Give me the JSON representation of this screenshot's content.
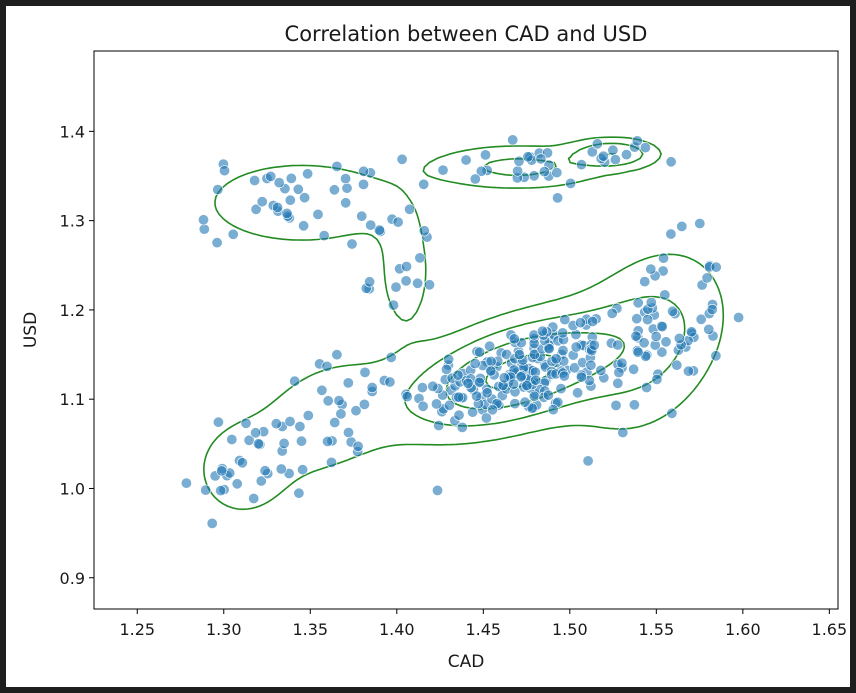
{
  "chart_data": {
    "type": "scatter",
    "title": "Correlation between CAD and USD",
    "xlabel": "CAD",
    "ylabel": "USD",
    "xlim": [
      1.225,
      1.655
    ],
    "ylim": [
      0.865,
      1.49
    ],
    "xticks": [
      "1.25",
      "1.30",
      "1.35",
      "1.40",
      "1.45",
      "1.50",
      "1.55",
      "1.60",
      "1.65"
    ],
    "yticks": [
      "0.9",
      "1.0",
      "1.1",
      "1.2",
      "1.3",
      "1.4"
    ],
    "grid": false,
    "colors": {
      "points": "#1f77b4",
      "contours": "#228b22",
      "axes": "#000000"
    },
    "clusters": [
      {
        "x": 1.47,
        "y": 1.13,
        "sx": 0.03,
        "sy": 0.03,
        "n": 190,
        "rho": 0.5
      },
      {
        "x": 1.545,
        "y": 1.165,
        "sx": 0.022,
        "sy": 0.05,
        "n": 85,
        "rho": 0.3
      },
      {
        "x": 1.36,
        "y": 1.08,
        "sx": 0.022,
        "sy": 0.035,
        "n": 40,
        "rho": 0.3
      },
      {
        "x": 1.31,
        "y": 1.02,
        "sx": 0.015,
        "sy": 0.03,
        "n": 20,
        "rho": 0.0
      },
      {
        "x": 1.345,
        "y": 1.32,
        "sx": 0.03,
        "sy": 0.025,
        "n": 45,
        "rho": 0.0
      },
      {
        "x": 1.47,
        "y": 1.36,
        "sx": 0.025,
        "sy": 0.012,
        "n": 25,
        "rho": 0.0
      },
      {
        "x": 1.525,
        "y": 1.375,
        "sx": 0.012,
        "sy": 0.008,
        "n": 12,
        "rho": 0.0
      },
      {
        "x": 1.405,
        "y": 1.24,
        "sx": 0.01,
        "sy": 0.04,
        "n": 15,
        "rho": 0.0
      }
    ],
    "contour_levels": [
      0.1,
      0.28,
      0.55,
      0.88
    ]
  }
}
